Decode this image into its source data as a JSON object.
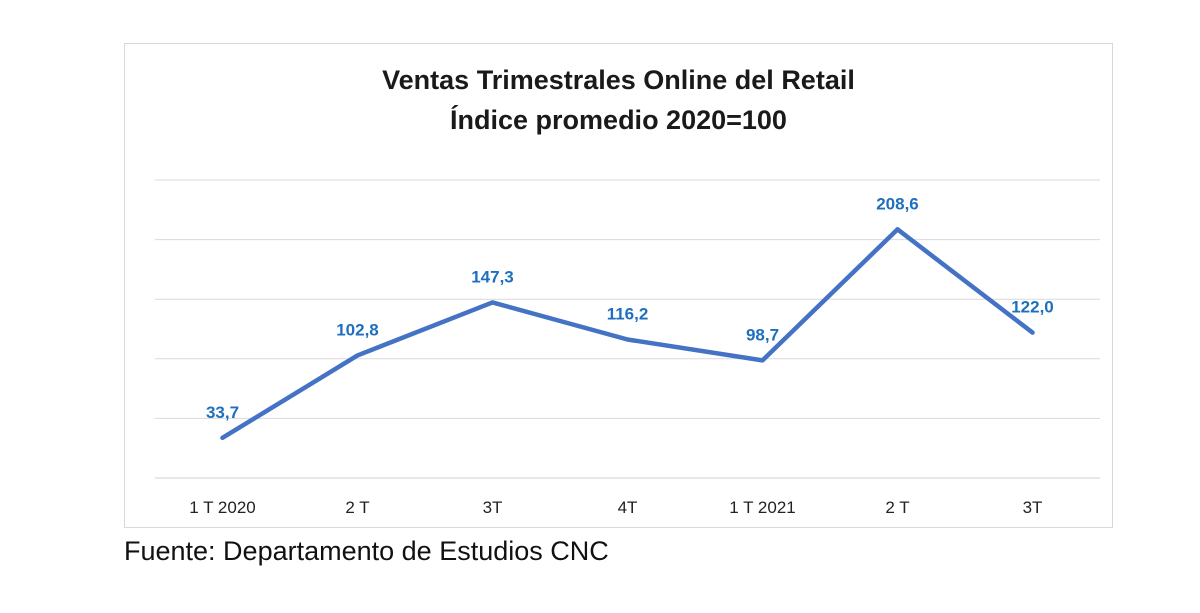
{
  "chart_data": {
    "type": "line",
    "title": "Ventas Trimestrales Online del Retail",
    "subtitle": "Índice promedio 2020=100",
    "xlabel": "",
    "ylabel": "",
    "categories": [
      "1 T 2020",
      "2 T",
      "3T",
      "4T",
      "1 T 2021",
      "2 T",
      "3T"
    ],
    "series": [
      {
        "values": [
          33.7,
          102.8,
          147.3,
          116.2,
          98.7,
          208.6,
          122.0
        ],
        "labels": [
          "33,7",
          "102,8",
          "147,3",
          "116,2",
          "98,7",
          "208,6",
          "122,0"
        ],
        "color": "#4472C4"
      }
    ],
    "ylim": [
      0,
      250
    ],
    "grid": true,
    "legend": "none",
    "label_color": "#1F6FBF",
    "gridline_color": "#d9d9d9"
  },
  "footer": {
    "source": "Fuente: Departamento de Estudios CNC"
  }
}
